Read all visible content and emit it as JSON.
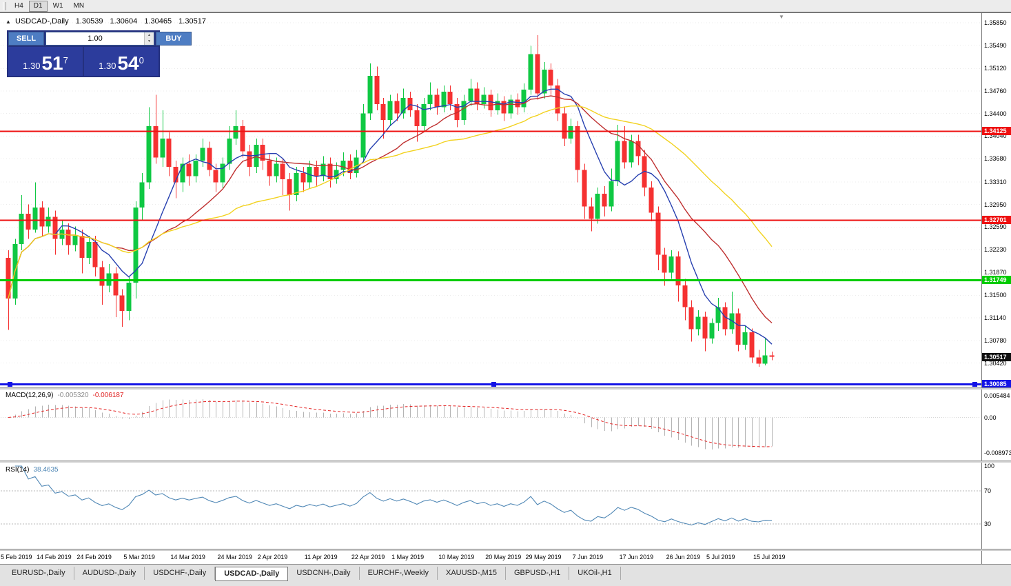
{
  "toolbar": {
    "periods": [
      "H4",
      "D1",
      "W1",
      "MN"
    ],
    "active_period": "D1"
  },
  "icons": {
    "one_click_toggle": "▲",
    "shift_marker": "▼",
    "volume_up": "▲",
    "volume_down": "▼"
  },
  "chart": {
    "title": "USDCAD-,Daily",
    "ohlc": {
      "open": "1.30539",
      "high": "1.30604",
      "low": "1.30465",
      "close": "1.30517"
    },
    "trade_panel": {
      "sell_label": "SELL",
      "buy_label": "BUY",
      "volume": "1.00",
      "sell_price": {
        "base": "1.30",
        "big": "51",
        "sup": "7"
      },
      "buy_price": {
        "base": "1.30",
        "big": "54",
        "sup": "0"
      }
    }
  },
  "chart_data": {
    "type": "candlestick",
    "symbol": "USDCAD-",
    "timeframe": "Daily",
    "colors": {
      "up": "#0fc843",
      "down": "#f53131",
      "background": "#ffffff"
    },
    "candles": [
      [
        1.321,
        1.3222,
        1.3095,
        1.3145
      ],
      [
        1.3145,
        1.324,
        1.3135,
        1.3232
      ],
      [
        1.3232,
        1.331,
        1.3222,
        1.328
      ],
      [
        1.328,
        1.3295,
        1.324,
        1.3255
      ],
      [
        1.3255,
        1.333,
        1.325,
        1.329
      ],
      [
        1.329,
        1.33,
        1.3245,
        1.326
      ],
      [
        1.326,
        1.329,
        1.325,
        1.3275
      ],
      [
        1.3275,
        1.3285,
        1.3215,
        1.324
      ],
      [
        1.324,
        1.327,
        1.323,
        1.3255
      ],
      [
        1.3255,
        1.3265,
        1.3215,
        1.323
      ],
      [
        1.323,
        1.326,
        1.322,
        1.3245
      ],
      [
        1.3245,
        1.3255,
        1.3185,
        1.321
      ],
      [
        1.321,
        1.3245,
        1.32,
        1.3235
      ],
      [
        1.3235,
        1.3245,
        1.318,
        1.3195
      ],
      [
        1.3195,
        1.3205,
        1.3135,
        1.3165
      ],
      [
        1.3165,
        1.32,
        1.3155,
        1.3185
      ],
      [
        1.3185,
        1.3195,
        1.3115,
        1.315
      ],
      [
        1.315,
        1.316,
        1.31,
        1.3125
      ],
      [
        1.3125,
        1.318,
        1.311,
        1.317
      ],
      [
        1.317,
        1.33,
        1.3145,
        1.329
      ],
      [
        1.329,
        1.3345,
        1.327,
        1.333
      ],
      [
        1.333,
        1.345,
        1.332,
        1.342
      ],
      [
        1.342,
        1.347,
        1.336,
        1.337
      ],
      [
        1.337,
        1.3445,
        1.3355,
        1.34
      ],
      [
        1.34,
        1.341,
        1.334,
        1.3355
      ],
      [
        1.3355,
        1.3365,
        1.3305,
        1.333
      ],
      [
        1.333,
        1.337,
        1.3315,
        1.336
      ],
      [
        1.336,
        1.3375,
        1.3325,
        1.334
      ],
      [
        1.334,
        1.3375,
        1.333,
        1.3365
      ],
      [
        1.3365,
        1.34,
        1.3355,
        1.3385
      ],
      [
        1.3385,
        1.3395,
        1.334,
        1.335
      ],
      [
        1.335,
        1.336,
        1.3315,
        1.333
      ],
      [
        1.333,
        1.337,
        1.332,
        1.336
      ],
      [
        1.336,
        1.342,
        1.335,
        1.34
      ],
      [
        1.34,
        1.3445,
        1.339,
        1.342
      ],
      [
        1.342,
        1.343,
        1.337,
        1.338
      ],
      [
        1.338,
        1.339,
        1.334,
        1.3355
      ],
      [
        1.3355,
        1.34,
        1.3345,
        1.339
      ],
      [
        1.339,
        1.34,
        1.335,
        1.3365
      ],
      [
        1.3365,
        1.3375,
        1.3325,
        1.334
      ],
      [
        1.334,
        1.337,
        1.333,
        1.336
      ],
      [
        1.336,
        1.3368,
        1.331,
        1.3335
      ],
      [
        1.3335,
        1.3345,
        1.3285,
        1.331
      ],
      [
        1.331,
        1.3355,
        1.33,
        1.3345
      ],
      [
        1.3345,
        1.3355,
        1.3315,
        1.333
      ],
      [
        1.333,
        1.3365,
        1.332,
        1.3355
      ],
      [
        1.3355,
        1.3365,
        1.3325,
        1.334
      ],
      [
        1.334,
        1.3372,
        1.3332,
        1.336
      ],
      [
        1.336,
        1.337,
        1.3322,
        1.3335
      ],
      [
        1.3335,
        1.3362,
        1.3328,
        1.335
      ],
      [
        1.335,
        1.3378,
        1.334,
        1.3365
      ],
      [
        1.3365,
        1.3375,
        1.3335,
        1.3345
      ],
      [
        1.3345,
        1.3382,
        1.3338,
        1.337
      ],
      [
        1.337,
        1.3455,
        1.3362,
        1.344
      ],
      [
        1.344,
        1.352,
        1.343,
        1.35
      ],
      [
        1.35,
        1.3515,
        1.3445,
        1.3455
      ],
      [
        1.3455,
        1.3465,
        1.34,
        1.343
      ],
      [
        1.343,
        1.347,
        1.342,
        1.346
      ],
      [
        1.346,
        1.3472,
        1.3428,
        1.344
      ],
      [
        1.344,
        1.348,
        1.3432,
        1.3465
      ],
      [
        1.3465,
        1.3475,
        1.3435,
        1.3445
      ],
      [
        1.3445,
        1.3455,
        1.3395,
        1.342
      ],
      [
        1.342,
        1.3465,
        1.341,
        1.3455
      ],
      [
        1.3455,
        1.349,
        1.3445,
        1.347
      ],
      [
        1.347,
        1.348,
        1.3438,
        1.345
      ],
      [
        1.345,
        1.3485,
        1.3442,
        1.3475
      ],
      [
        1.3475,
        1.3485,
        1.3445,
        1.3455
      ],
      [
        1.3455,
        1.3465,
        1.3418,
        1.343
      ],
      [
        1.343,
        1.347,
        1.3422,
        1.346
      ],
      [
        1.346,
        1.3495,
        1.3452,
        1.348
      ],
      [
        1.348,
        1.349,
        1.3445,
        1.3455
      ],
      [
        1.3455,
        1.3482,
        1.3448,
        1.347
      ],
      [
        1.347,
        1.3478,
        1.3435,
        1.3445
      ],
      [
        1.3445,
        1.3472,
        1.3438,
        1.346
      ],
      [
        1.346,
        1.3468,
        1.3428,
        1.344
      ],
      [
        1.344,
        1.347,
        1.3432,
        1.3462
      ],
      [
        1.3462,
        1.3472,
        1.3438,
        1.345
      ],
      [
        1.345,
        1.3488,
        1.3442,
        1.3478
      ],
      [
        1.3478,
        1.3548,
        1.347,
        1.3535
      ],
      [
        1.3535,
        1.3565,
        1.3462,
        1.3472
      ],
      [
        1.3472,
        1.3522,
        1.3464,
        1.351
      ],
      [
        1.351,
        1.352,
        1.347,
        1.3485
      ],
      [
        1.3485,
        1.3495,
        1.3428,
        1.344
      ],
      [
        1.344,
        1.345,
        1.3388,
        1.34
      ],
      [
        1.34,
        1.3432,
        1.3392,
        1.342
      ],
      [
        1.342,
        1.3428,
        1.333,
        1.335
      ],
      [
        1.335,
        1.336,
        1.3272,
        1.3292
      ],
      [
        1.3292,
        1.3306,
        1.3252,
        1.3272
      ],
      [
        1.3272,
        1.3322,
        1.3264,
        1.3312
      ],
      [
        1.3312,
        1.3324,
        1.3276,
        1.3292
      ],
      [
        1.3292,
        1.3352,
        1.3284,
        1.3332
      ],
      [
        1.3332,
        1.3422,
        1.3324,
        1.3396
      ],
      [
        1.3396,
        1.342,
        1.3352,
        1.3362
      ],
      [
        1.3362,
        1.3406,
        1.3354,
        1.3396
      ],
      [
        1.3396,
        1.3406,
        1.3358,
        1.3372
      ],
      [
        1.3372,
        1.3382,
        1.3308,
        1.3322
      ],
      [
        1.3322,
        1.3332,
        1.3268,
        1.3282
      ],
      [
        1.3282,
        1.3292,
        1.319,
        1.3215
      ],
      [
        1.3215,
        1.3226,
        1.3165,
        1.3186
      ],
      [
        1.3186,
        1.3222,
        1.3176,
        1.3212
      ],
      [
        1.3212,
        1.322,
        1.314,
        1.3166
      ],
      [
        1.3166,
        1.3176,
        1.311,
        1.3131
      ],
      [
        1.3131,
        1.3142,
        1.3076,
        1.3096
      ],
      [
        1.3096,
        1.3126,
        1.3086,
        1.3116
      ],
      [
        1.3116,
        1.3124,
        1.3061,
        1.3081
      ],
      [
        1.3081,
        1.3113,
        1.3073,
        1.3106
      ],
      [
        1.3106,
        1.3146,
        1.3093,
        1.3131
      ],
      [
        1.3131,
        1.3139,
        1.3086,
        1.3096
      ],
      [
        1.3096,
        1.3156,
        1.3089,
        1.3121
      ],
      [
        1.3121,
        1.3129,
        1.3061,
        1.3071
      ],
      [
        1.3071,
        1.3101,
        1.3063,
        1.3091
      ],
      [
        1.3091,
        1.3097,
        1.3042,
        1.3051
      ],
      [
        1.3051,
        1.3063,
        1.3036,
        1.3041
      ],
      [
        1.3041,
        1.3081,
        1.3038,
        1.3054
      ],
      [
        1.30539,
        1.30604,
        1.30465,
        1.30517
      ]
    ],
    "moving_averages": [
      {
        "period": 8,
        "color": "#2740b0"
      },
      {
        "period": 17,
        "color": "#bf3030"
      },
      {
        "period": 34,
        "color": "#f2d21f"
      }
    ],
    "hlines": [
      {
        "price": 1.34125,
        "label": "1.34125",
        "color": "#ee1111",
        "width": 2
      },
      {
        "price": 1.32701,
        "label": "1.32701",
        "color": "#ee1111",
        "width": 2
      },
      {
        "price": 1.31749,
        "label": "1.31749",
        "color": "#00cc00",
        "width": 3
      },
      {
        "price": 1.30085,
        "label": "1.30085",
        "color": "#1414e6",
        "width": 3,
        "selected": true
      }
    ],
    "current_bid": {
      "price": 1.30517,
      "label": "1.30517"
    },
    "price_axis": {
      "min": 1.3003,
      "max": 1.3597,
      "labels": [
        "1.35850",
        "1.35490",
        "1.35120",
        "1.34760",
        "1.34400",
        "1.34040",
        "1.33680",
        "1.33310",
        "1.32950",
        "1.32590",
        "1.32230",
        "1.31870",
        "1.31500",
        "1.31140",
        "1.30780",
        "1.30420"
      ]
    },
    "date_axis": {
      "labels": [
        {
          "text": "5 Feb 2019",
          "i": 0
        },
        {
          "text": "14 Feb 2019",
          "i": 7
        },
        {
          "text": "24 Feb 2019",
          "i": 13
        },
        {
          "text": "5 Mar 2019",
          "i": 20
        },
        {
          "text": "14 Mar 2019",
          "i": 27
        },
        {
          "text": "24 Mar 2019",
          "i": 34
        },
        {
          "text": "2 Apr 2019",
          "i": 40
        },
        {
          "text": "11 Apr 2019",
          "i": 47
        },
        {
          "text": "22 Apr 2019",
          "i": 54
        },
        {
          "text": "1 May 2019",
          "i": 60
        },
        {
          "text": "10 May 2019",
          "i": 67
        },
        {
          "text": "20 May 2019",
          "i": 74
        },
        {
          "text": "29 May 2019",
          "i": 80
        },
        {
          "text": "7 Jun 2019",
          "i": 87
        },
        {
          "text": "17 Jun 2019",
          "i": 94
        },
        {
          "text": "26 Jun 2019",
          "i": 101
        },
        {
          "text": "5 Jul 2019",
          "i": 107
        },
        {
          "text": "15 Jul 2019",
          "i": 114
        }
      ]
    },
    "macd": {
      "header": "MACD(12,26,9)",
      "fast": 12,
      "slow": 26,
      "signal": 9,
      "value_main": "-0.005320",
      "value_signal": "-0.006187",
      "axis_labels": [
        "0.005484",
        "0.00",
        "-0.008973"
      ],
      "range": [
        -0.0109,
        0.0069
      ],
      "hist_color": "#b4b4b4",
      "signal_color": "#e42222"
    },
    "rsi": {
      "header": "RSI(14)",
      "period": 14,
      "value": "38.4635",
      "levels": [
        70,
        30
      ],
      "axis_labels": [
        "100",
        "70",
        "30"
      ],
      "color": "#4f87b5"
    }
  },
  "tabs": {
    "items": [
      "EURUSD-,Daily",
      "AUDUSD-,Daily",
      "USDCHF-,Daily",
      "USDCAD-,Daily",
      "USDCNH-,Daily",
      "EURCHF-,Weekly",
      "XAUUSD-,M15",
      "GBPUSD-,H1",
      "UKOil-,H1"
    ],
    "active_index": 3
  }
}
